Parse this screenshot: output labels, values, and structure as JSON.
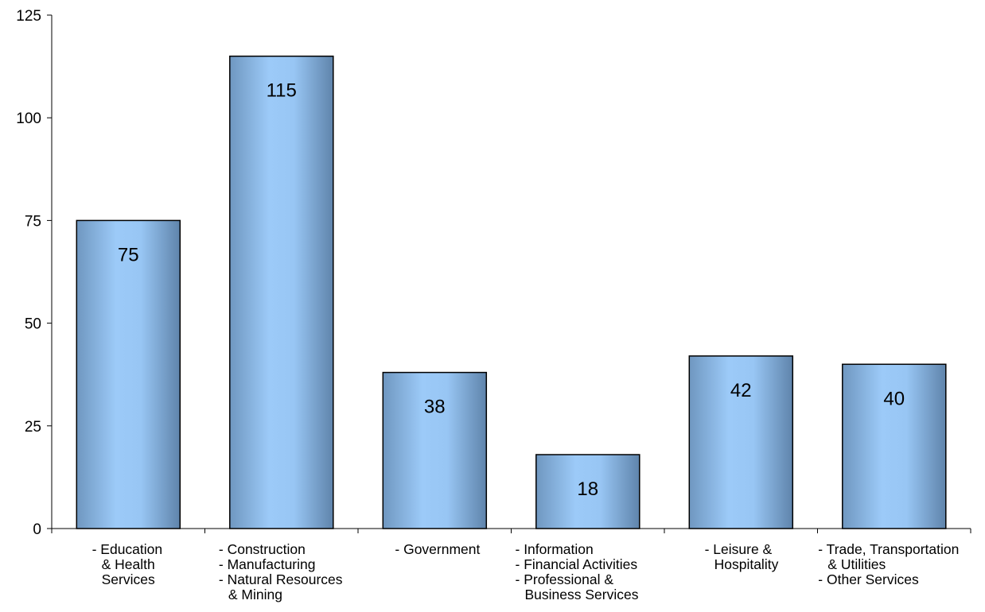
{
  "chart_data": {
    "type": "bar",
    "title": "",
    "xlabel": "",
    "ylabel": "",
    "ylim": [
      0,
      125
    ],
    "yticks": [
      0,
      25,
      50,
      75,
      100,
      125
    ],
    "grid": false,
    "bar_color": "#6b93bd",
    "categories": [
      {
        "lines": [
          "- Education",
          "& Health",
          "Services"
        ]
      },
      {
        "lines": [
          "- Construction",
          "- Manufacturing",
          "- Natural Resources",
          "& Mining"
        ]
      },
      {
        "lines": [
          "- Government"
        ]
      },
      {
        "lines": [
          "- Information",
          "- Financial Activities",
          "- Professional &",
          "Business Services"
        ]
      },
      {
        "lines": [
          "- Leisure &",
          "Hospitality"
        ]
      },
      {
        "lines": [
          "- Trade, Transportation",
          "& Utilities",
          "- Other Services"
        ]
      }
    ],
    "values": [
      75,
      115,
      38,
      18,
      42,
      40
    ],
    "data_labels": [
      "75",
      "115",
      "38",
      "18",
      "42",
      "40"
    ]
  }
}
